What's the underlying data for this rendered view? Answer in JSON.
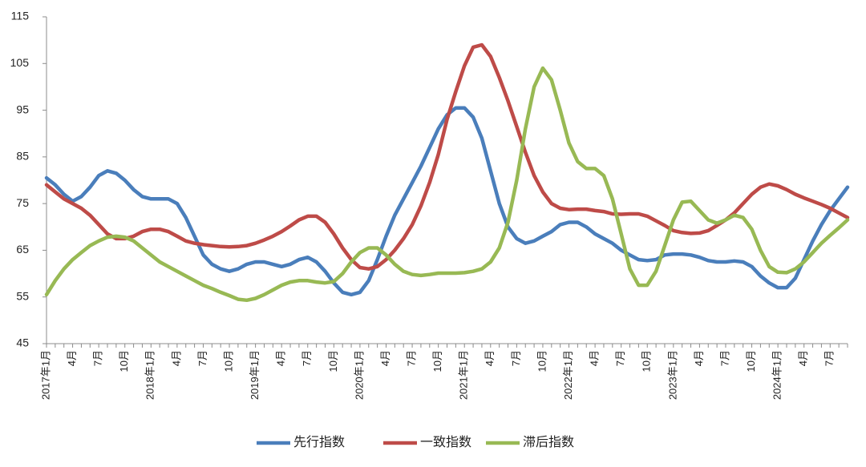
{
  "chart_data": {
    "type": "line",
    "categories": [
      "2017年1月",
      null,
      null,
      "4月",
      null,
      null,
      "7月",
      null,
      null,
      "10月",
      null,
      null,
      "2018年1月",
      null,
      null,
      "4月",
      null,
      null,
      "7月",
      null,
      null,
      "10月",
      null,
      null,
      "2019年1月",
      null,
      null,
      "4月",
      null,
      null,
      "7月",
      null,
      null,
      "10月",
      null,
      null,
      "2020年1月",
      null,
      null,
      "4月",
      null,
      null,
      "7月",
      null,
      null,
      "10月",
      null,
      null,
      "2021年1月",
      null,
      null,
      "4月",
      null,
      null,
      "7月",
      null,
      null,
      "10月",
      null,
      null,
      "2022年1月",
      null,
      null,
      "4月",
      null,
      null,
      "7月",
      null,
      null,
      "10月",
      null,
      null,
      "2023年1月",
      null,
      null,
      "4月",
      null,
      null,
      "7月",
      null,
      null,
      "10月",
      null,
      null,
      "2024年1月",
      null,
      null,
      "4月",
      null,
      null,
      "7月",
      null,
      null
    ],
    "series": [
      {
        "name": "先行指数",
        "color": "#4a7ebb",
        "values": [
          80.5,
          79,
          77,
          75.5,
          76.5,
          78.5,
          81,
          82,
          81.5,
          80,
          78,
          76.5,
          76,
          76,
          76,
          75,
          72,
          68,
          64,
          62,
          61,
          60.5,
          61,
          62,
          62.5,
          62.5,
          62,
          61.5,
          62,
          63,
          63.5,
          62.5,
          60.5,
          58,
          56,
          55.5,
          56,
          58.5,
          63,
          68,
          72.5,
          76,
          79.5,
          83,
          87,
          91,
          94,
          95.5,
          95.5,
          93.5,
          89,
          82,
          75,
          70,
          67.5,
          66.5,
          67,
          68,
          69,
          70.5,
          71,
          71,
          70,
          68.5,
          67.5,
          66.5,
          65,
          64,
          63,
          62.8,
          63,
          64,
          64.2,
          64.2,
          64,
          63.5,
          62.8,
          62.5,
          62.5,
          62.7,
          62.5,
          61.5,
          59.5,
          58,
          57,
          57,
          59,
          63,
          67,
          70.5,
          73.5,
          76,
          78.5
        ]
      },
      {
        "name": "一致指数",
        "color": "#be4b48",
        "values": [
          79,
          77.5,
          76,
          75,
          74,
          72.5,
          70.5,
          68.5,
          67.5,
          67.5,
          68,
          69,
          69.5,
          69.5,
          69,
          68,
          67,
          66.5,
          66.2,
          66,
          65.8,
          65.7,
          65.8,
          66,
          66.5,
          67.2,
          68,
          69,
          70.2,
          71.5,
          72.3,
          72.3,
          71,
          68.5,
          65.5,
          63,
          61.3,
          61,
          61.5,
          63,
          65,
          67.5,
          70.5,
          74.5,
          79.5,
          85.5,
          93,
          99,
          104.5,
          108.5,
          109,
          106.5,
          102,
          97,
          91.5,
          86,
          81,
          77.5,
          75,
          74,
          73.7,
          73.8,
          73.8,
          73.5,
          73.3,
          72.8,
          72.7,
          72.8,
          72.8,
          72.3,
          71.3,
          70.3,
          69.2,
          68.8,
          68.6,
          68.7,
          69.2,
          70.3,
          71.5,
          73,
          75,
          77,
          78.5,
          79.2,
          78.8,
          78,
          77,
          76.2,
          75.5,
          74.8,
          74,
          73,
          72
        ]
      },
      {
        "name": "滞后指数",
        "color": "#98b954",
        "values": [
          55.5,
          58.5,
          61,
          63,
          64.5,
          66,
          67,
          67.8,
          68,
          67.8,
          67,
          65.5,
          64,
          62.5,
          61.5,
          60.5,
          59.5,
          58.5,
          57.5,
          56.8,
          56,
          55.3,
          54.5,
          54.3,
          54.7,
          55.5,
          56.5,
          57.5,
          58.2,
          58.5,
          58.5,
          58.2,
          58,
          58.3,
          60,
          62.5,
          64.5,
          65.5,
          65.5,
          64,
          62,
          60.5,
          59.8,
          59.6,
          59.8,
          60.1,
          60.1,
          60.1,
          60.2,
          60.5,
          61,
          62.5,
          65.5,
          71,
          80,
          91,
          100,
          104,
          101.5,
          95,
          88,
          84,
          82.5,
          82.5,
          81,
          76,
          68.5,
          61,
          57.5,
          57.5,
          60.5,
          66,
          71.5,
          75.3,
          75.5,
          73.5,
          71.5,
          70.8,
          71.5,
          72.5,
          72,
          69.5,
          65,
          61.5,
          60.3,
          60.2,
          61,
          62.5,
          64.5,
          66.5,
          68.2,
          69.8,
          71.5
        ]
      }
    ],
    "ylim": [
      45,
      115
    ],
    "yticks": [
      45,
      55,
      65,
      75,
      85,
      95,
      105,
      115
    ],
    "grid": false,
    "legend": "bottom"
  }
}
